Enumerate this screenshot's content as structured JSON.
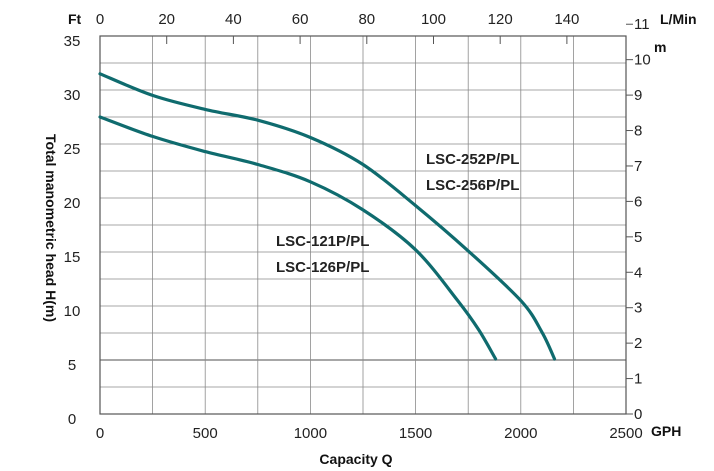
{
  "chart_data": {
    "type": "line",
    "xlabel": "Capacity Q",
    "ylabel": "Total manometric head H(m)",
    "units": {
      "ft": "Ft",
      "lmin": "L/Min",
      "m": "m",
      "gph": "GPH"
    },
    "x_gph_ticks": [
      "0",
      "500",
      "1000",
      "1500",
      "2000",
      "2500"
    ],
    "x_lmin_ticks": [
      "0",
      "20",
      "40",
      "60",
      "80",
      "100",
      "120",
      "140"
    ],
    "y_ft_ticks": [
      "0",
      "5",
      "10",
      "15",
      "20",
      "25",
      "30",
      "35"
    ],
    "y_m_ticks": [
      "0",
      "1",
      "2",
      "3",
      "4",
      "5",
      "6",
      "7",
      "8",
      "9",
      "10",
      "11"
    ],
    "xlim_gph": [
      0,
      2500
    ],
    "ylim_ft": [
      0,
      35
    ],
    "grid": true,
    "series": [
      {
        "name": "LSC-121P/PL LSC-126P/PL",
        "label_lines": [
          "LSC-121P/PL",
          "LSC-126P/PL"
        ],
        "color": "#0f6b6e",
        "points": [
          [
            0,
            27.5
          ],
          [
            250,
            25.7
          ],
          [
            500,
            24.3
          ],
          [
            750,
            23.1
          ],
          [
            1000,
            21.5
          ],
          [
            1250,
            18.9
          ],
          [
            1500,
            15.2
          ],
          [
            1700,
            10.5
          ],
          [
            1800,
            7.8
          ],
          [
            1880,
            5.1
          ]
        ]
      },
      {
        "name": "LSC-252P/PL LSC-256P/PL",
        "label_lines": [
          "LSC-252P/PL",
          "LSC-256P/PL"
        ],
        "color": "#0f6b6e",
        "points": [
          [
            0,
            31.5
          ],
          [
            250,
            29.5
          ],
          [
            500,
            28.2
          ],
          [
            750,
            27.2
          ],
          [
            1000,
            25.6
          ],
          [
            1250,
            23.1
          ],
          [
            1500,
            19.3
          ],
          [
            1750,
            15.1
          ],
          [
            2000,
            10.5
          ],
          [
            2100,
            7.6
          ],
          [
            2160,
            5.1
          ]
        ]
      }
    ]
  }
}
